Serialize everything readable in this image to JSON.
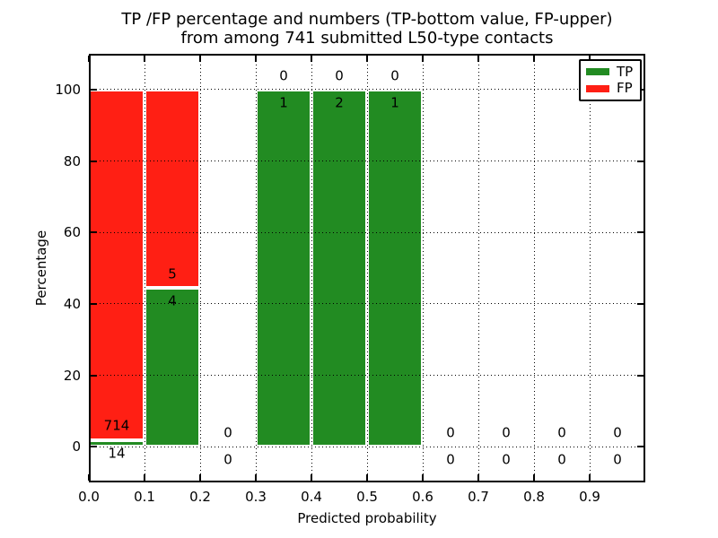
{
  "chart_data": {
    "type": "bar",
    "stacked": true,
    "title_line1": "TP /FP percentage and numbers (TP-bottom value, FP-upper)",
    "title_line2": "from among 741 submitted L50-type contacts",
    "xlabel": "Predicted probability",
    "ylabel": "Percentage",
    "total_contacts": 741,
    "xlim": [
      0.0,
      1.0
    ],
    "ylim": [
      -10,
      110
    ],
    "grid": "dotted",
    "legend_position": "upper-right",
    "legend": [
      {
        "label": "TP",
        "color": "#228b22"
      },
      {
        "label": "FP",
        "color": "#ff1f14"
      }
    ],
    "colors": {
      "tp": "#228b22",
      "fp": "#ff1f14"
    },
    "xticks": [
      "0.0",
      "0.1",
      "0.2",
      "0.3",
      "0.4",
      "0.5",
      "0.6",
      "0.7",
      "0.8",
      "0.9"
    ],
    "xtick_values": [
      0.0,
      0.1,
      0.2,
      0.3,
      0.4,
      0.5,
      0.6,
      0.7,
      0.8,
      0.9
    ],
    "yticks": [
      "0",
      "20",
      "40",
      "60",
      "80",
      "100"
    ],
    "ytick_values": [
      0,
      20,
      40,
      60,
      80,
      100
    ],
    "bins": [
      {
        "x0": 0.0,
        "x1": 0.1,
        "tp_count": 14,
        "fp_count": 714,
        "tp_pct": 1.92,
        "fp_pct": 98.08
      },
      {
        "x0": 0.1,
        "x1": 0.2,
        "tp_count": 4,
        "fp_count": 5,
        "tp_pct": 44.44,
        "fp_pct": 55.56
      },
      {
        "x0": 0.2,
        "x1": 0.3,
        "tp_count": 0,
        "fp_count": 0,
        "tp_pct": 0,
        "fp_pct": 0
      },
      {
        "x0": 0.3,
        "x1": 0.4,
        "tp_count": 1,
        "fp_count": 0,
        "tp_pct": 100,
        "fp_pct": 0
      },
      {
        "x0": 0.4,
        "x1": 0.5,
        "tp_count": 2,
        "fp_count": 0,
        "tp_pct": 100,
        "fp_pct": 0
      },
      {
        "x0": 0.5,
        "x1": 0.6,
        "tp_count": 1,
        "fp_count": 0,
        "tp_pct": 100,
        "fp_pct": 0
      },
      {
        "x0": 0.6,
        "x1": 0.7,
        "tp_count": 0,
        "fp_count": 0,
        "tp_pct": 0,
        "fp_pct": 0
      },
      {
        "x0": 0.7,
        "x1": 0.8,
        "tp_count": 0,
        "fp_count": 0,
        "tp_pct": 0,
        "fp_pct": 0
      },
      {
        "x0": 0.8,
        "x1": 0.9,
        "tp_count": 0,
        "fp_count": 0,
        "tp_pct": 0,
        "fp_pct": 0
      },
      {
        "x0": 0.9,
        "x1": 1.0,
        "tp_count": 0,
        "fp_count": 0,
        "tp_pct": 0,
        "fp_pct": 0
      }
    ],
    "annotation_note": "TP count below green-bar top, FP count above green-bar top, offset ~3.8 pct units"
  }
}
